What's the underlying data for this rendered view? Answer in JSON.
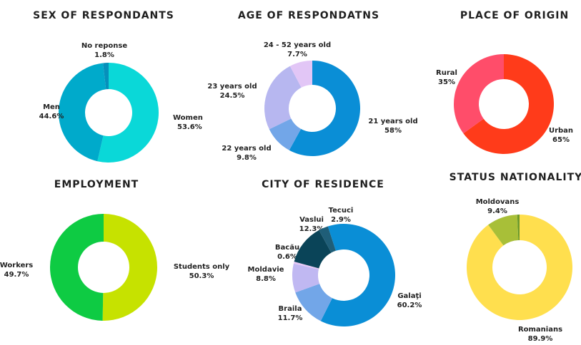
{
  "chart_data": [
    {
      "type": "pie",
      "title": "SEX OF RESPONDANTS",
      "slices": [
        {
          "name": "Women",
          "value": 53.6,
          "label": "53.6%",
          "color": "#0ad8d8"
        },
        {
          "name": "Men",
          "value": 44.6,
          "label": "44.6%",
          "color": "#00aacb"
        },
        {
          "name": "No reponse",
          "value": 1.8,
          "label": "1.8%",
          "color": "#0690bb"
        }
      ]
    },
    {
      "type": "pie",
      "title": "AGE OF RESPONDATNS",
      "slices": [
        {
          "name": "21 years old",
          "value": 58,
          "label": "58%",
          "color": "#0a8ed6"
        },
        {
          "name": "22 years old",
          "value": 9.8,
          "label": "9.8%",
          "color": "#72a6e8"
        },
        {
          "name": "23 years old",
          "value": 24.5,
          "label": "24.5%",
          "color": "#b7b7f0"
        },
        {
          "name": "24 - 52 years old",
          "value": 7.7,
          "label": "7.7%",
          "color": "#e2c6f6"
        }
      ]
    },
    {
      "type": "pie",
      "title": "PLACE OF ORIGIN",
      "slices": [
        {
          "name": "Urban",
          "value": 65,
          "label": "65%",
          "color": "#ff3b1a"
        },
        {
          "name": "Rural",
          "value": 35,
          "label": "35%",
          "color": "#ff4d6a"
        }
      ]
    },
    {
      "type": "pie",
      "title": "EMPLOYMENT",
      "slices": [
        {
          "name": "Students only",
          "value": 50.3,
          "label": "50.3%",
          "color": "#c6e200"
        },
        {
          "name": "Workers",
          "value": 49.7,
          "label": "49.7%",
          "color": "#0ecb43"
        }
      ]
    },
    {
      "type": "pie",
      "title": "CITY OF RESIDENCE",
      "slices": [
        {
          "name": "Galaţi",
          "value": 60.2,
          "label": "60.2%",
          "color": "#0a8ed6"
        },
        {
          "name": "Braila",
          "value": 11.7,
          "label": "11.7%",
          "color": "#72a6e8"
        },
        {
          "name": "Moldavie",
          "value": 8.8,
          "label": "8.8%",
          "color": "#c0b8f2"
        },
        {
          "name": "Bacău",
          "value": 0.6,
          "label": "0.6%",
          "color": "#e6c8f5"
        },
        {
          "name": "Vaslui",
          "value": 12.3,
          "label": "12.3%",
          "color": "#0a4458"
        },
        {
          "name": "Tecuci",
          "value": 2.9,
          "label": "2.9%",
          "color": "#1f5e78"
        }
      ]
    },
    {
      "type": "pie",
      "title": "STATUS NATIONALITY",
      "slices": [
        {
          "name": "Romanians",
          "value": 89.9,
          "label": "89.9%",
          "color": "#ffdf4e"
        },
        {
          "name": "Moldovans",
          "value": 9.4,
          "label": "9.4%",
          "color": "#a8bf38"
        },
        {
          "name": "",
          "value": 0.7,
          "label": "",
          "color": "#6c9a2a"
        }
      ]
    }
  ]
}
